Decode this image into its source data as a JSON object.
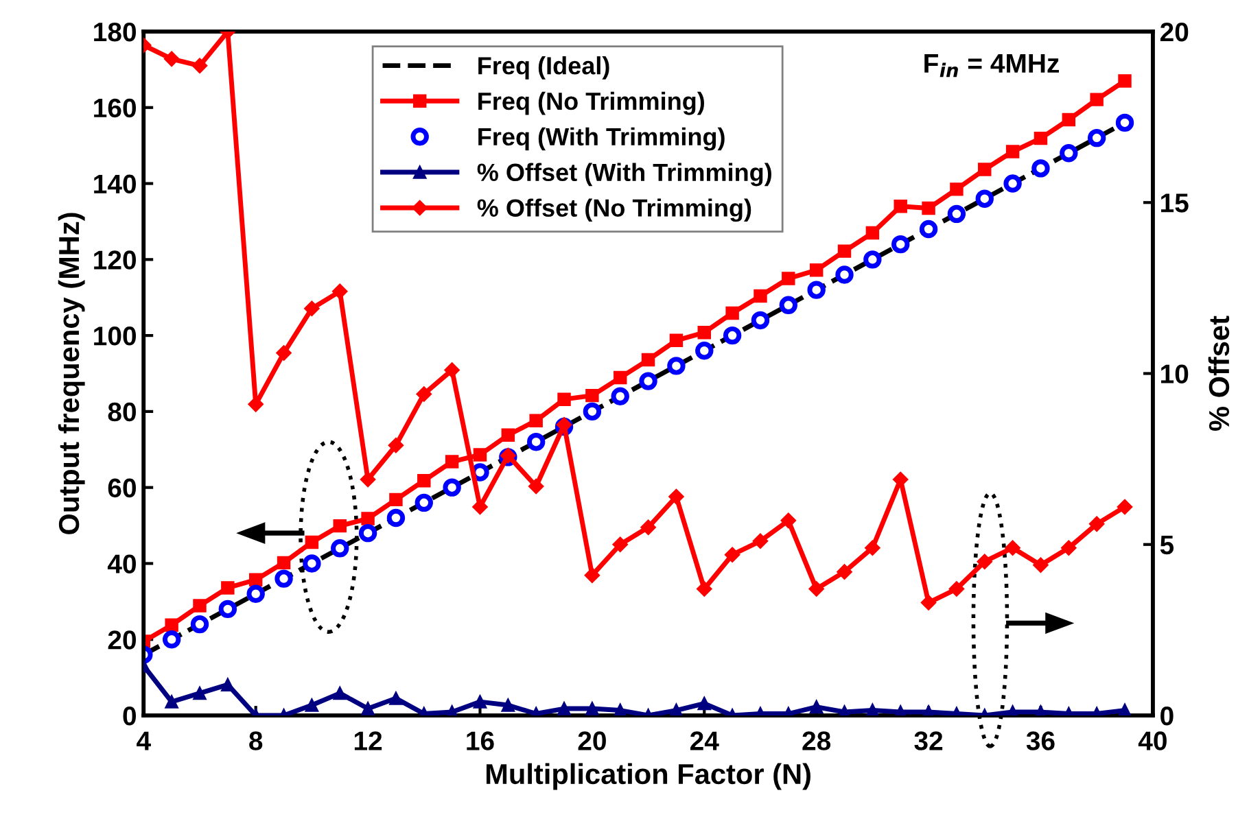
{
  "chart_data": {
    "type": "line",
    "xlabel": "Multiplication Factor (N)",
    "ylabel": "Output frequency (MHz)",
    "y2label": "% Offset",
    "annotations": [
      "F$_{in}$ = 4MHz"
    ],
    "x": [
      4,
      5,
      6,
      7,
      8,
      9,
      10,
      11,
      12,
      13,
      14,
      15,
      16,
      17,
      18,
      19,
      20,
      21,
      22,
      23,
      24,
      25,
      26,
      27,
      28,
      29,
      30,
      31,
      32,
      33,
      34,
      35,
      36,
      37,
      38,
      39
    ],
    "xlim": [
      4,
      40
    ],
    "xticks": [
      4,
      8,
      12,
      16,
      20,
      24,
      28,
      32,
      36,
      40
    ],
    "ylim": [
      0,
      180
    ],
    "yticks": [
      0,
      20,
      40,
      60,
      80,
      100,
      120,
      140,
      160,
      180
    ],
    "y2lim": [
      0,
      20
    ],
    "y2ticks": [
      0,
      5,
      10,
      15,
      20
    ],
    "legend": "top",
    "grid": false,
    "series": [
      {
        "name": "Freq (Ideal)",
        "color": "#000000",
        "line_style": "dashed",
        "marker": "none",
        "values": [
          16,
          20,
          24,
          28,
          32,
          36,
          40,
          44,
          48,
          52,
          56,
          60,
          64,
          68,
          72,
          76,
          80,
          84,
          88,
          92,
          96,
          100,
          104,
          108,
          112,
          116,
          120,
          124,
          128,
          132,
          136,
          140,
          144,
          148,
          152,
          156
        ]
      },
      {
        "name": "Freq (No Trimming)",
        "color": "#ff0000",
        "line_style": "solid",
        "marker": "square",
        "values": [
          19.5,
          23.8,
          28.9,
          33.6,
          35.7,
          40.2,
          45.6,
          49.9,
          51.8,
          56.8,
          61.8,
          66.8,
          68.6,
          73.8,
          77.6,
          83.2,
          84.2,
          88.9,
          93.6,
          98.7,
          100.8,
          105.9,
          110.4,
          115,
          117.2,
          122.2,
          127,
          134,
          133.5,
          138.5,
          143.7,
          148.4,
          151.9,
          156.8,
          162.1,
          167
        ]
      },
      {
        "name": "Freq (With Trimming)",
        "type": "scatter",
        "color": "#0000ff",
        "marker": "circle",
        "values": [
          16,
          20,
          24,
          28,
          32,
          36,
          40,
          44,
          48,
          52,
          56,
          60,
          64,
          68,
          72,
          76,
          80,
          84,
          88,
          92,
          96,
          100,
          104,
          108,
          112,
          116,
          120,
          124,
          128,
          132,
          136,
          140,
          144,
          148,
          152,
          156
        ]
      },
      {
        "name": "% Offset (With Trimming)",
        "axis": "y2",
        "color": "#000080",
        "line_style": "solid",
        "marker": "triangle",
        "values": [
          1.45,
          0.4,
          0.65,
          0.9,
          0,
          0,
          0.3,
          0.65,
          0.2,
          0.5,
          0.05,
          0.1,
          0.4,
          0.3,
          0.05,
          0.2,
          0.2,
          0.15,
          0,
          0.15,
          0.35,
          0,
          0.05,
          0.05,
          0.25,
          0.1,
          0.15,
          0.1,
          0.1,
          0.05,
          0,
          0.1,
          0.1,
          0.05,
          0.05,
          0.15
        ]
      },
      {
        "name": "% Offset (No Trimming)",
        "axis": "y2",
        "color": "#ff0000",
        "line_style": "solid",
        "marker": "diamond",
        "values": [
          19.6,
          19.2,
          19.0,
          20.0,
          9.1,
          10.6,
          11.9,
          12.4,
          6.9,
          7.9,
          9.4,
          10.1,
          6.1,
          7.6,
          6.7,
          8.5,
          4.1,
          5.0,
          5.5,
          6.4,
          3.7,
          4.7,
          5.1,
          5.7,
          3.7,
          4.2,
          4.9,
          6.9,
          3.3,
          3.7,
          4.5,
          4.9,
          4.4,
          4.9,
          5.6,
          6.1
        ]
      }
    ]
  }
}
